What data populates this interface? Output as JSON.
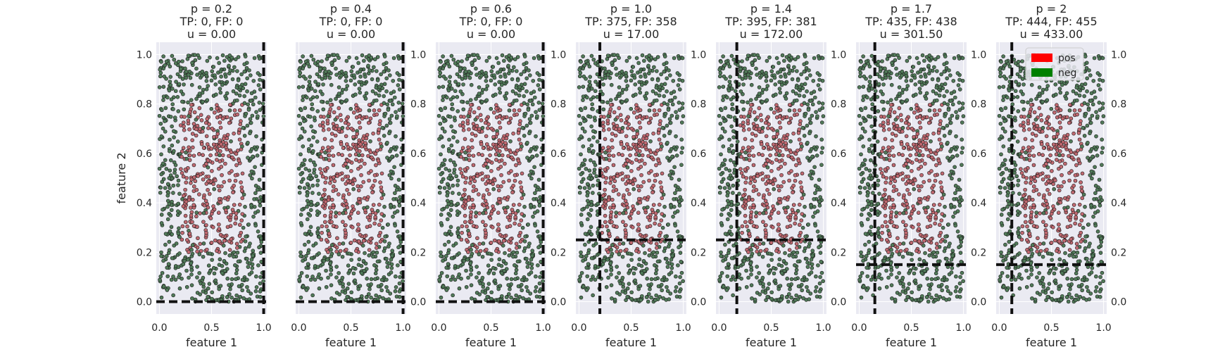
{
  "chart_data": [
    {
      "type": "scatter",
      "title_lines": [
        "p = 0.2",
        "TP: 0, FP: 0",
        "u = 0.00"
      ],
      "xlabel": "feature 1",
      "ylabel": "feature 2",
      "xlim": [
        -0.03,
        1.03
      ],
      "ylim": [
        -0.05,
        1.05
      ],
      "xticks": [
        "0.0",
        "0.5",
        "1.0"
      ],
      "yticks": [
        "0.0",
        "0.2",
        "0.4",
        "0.6",
        "0.8",
        "1.0"
      ],
      "yaxis_side": "left",
      "threshold_x": 1.0,
      "threshold_y": 0.0,
      "grid": true
    },
    {
      "type": "scatter",
      "title_lines": [
        "p = 0.4",
        "TP: 0, FP: 0",
        "u = 0.00"
      ],
      "xlabel": "feature 1",
      "ylabel": "",
      "xlim": [
        -0.03,
        1.03
      ],
      "ylim": [
        -0.05,
        1.05
      ],
      "xticks": [
        "0.0",
        "0.5",
        "1.0"
      ],
      "yticks": [
        "0.0",
        "0.2",
        "0.4",
        "0.6",
        "0.8",
        "1.0"
      ],
      "yaxis_side": "right",
      "threshold_x": 1.0,
      "threshold_y": 0.0,
      "grid": true
    },
    {
      "type": "scatter",
      "title_lines": [
        "p = 0.6",
        "TP: 0, FP: 0",
        "u = 0.00"
      ],
      "xlabel": "feature 1",
      "ylabel": "",
      "xlim": [
        -0.03,
        1.03
      ],
      "ylim": [
        -0.05,
        1.05
      ],
      "xticks": [
        "0.0",
        "0.5",
        "1.0"
      ],
      "yticks": [
        "0.0",
        "0.2",
        "0.4",
        "0.6",
        "0.8",
        "1.0"
      ],
      "yaxis_side": "right",
      "threshold_x": 1.0,
      "threshold_y": 0.0,
      "grid": true
    },
    {
      "type": "scatter",
      "title_lines": [
        "p = 1.0",
        "TP: 375, FP: 358",
        "u = 17.00"
      ],
      "xlabel": "feature 1",
      "ylabel": "",
      "xlim": [
        -0.03,
        1.03
      ],
      "ylim": [
        -0.05,
        1.05
      ],
      "xticks": [
        "0.0",
        "0.5",
        "1.0"
      ],
      "yticks": [
        "0.0",
        "0.2",
        "0.4",
        "0.6",
        "0.8",
        "1.0"
      ],
      "yaxis_side": "right",
      "threshold_x": 0.2,
      "threshold_y": 0.25,
      "grid": true
    },
    {
      "type": "scatter",
      "title_lines": [
        "p = 1.4",
        "TP: 395, FP: 381",
        "u = 172.00"
      ],
      "xlabel": "feature 1",
      "ylabel": "",
      "xlim": [
        -0.03,
        1.03
      ],
      "ylim": [
        -0.05,
        1.05
      ],
      "xticks": [
        "0.0",
        "0.5",
        "1.0"
      ],
      "yticks": [
        "0.0",
        "0.2",
        "0.4",
        "0.6",
        "0.8",
        "1.0"
      ],
      "yaxis_side": "right",
      "threshold_x": 0.17,
      "threshold_y": 0.25,
      "grid": true
    },
    {
      "type": "scatter",
      "title_lines": [
        "p = 1.7",
        "TP: 435, FP: 438",
        "u = 301.50"
      ],
      "xlabel": "feature 1",
      "ylabel": "",
      "xlim": [
        -0.03,
        1.03
      ],
      "ylim": [
        -0.05,
        1.05
      ],
      "xticks": [
        "0.0",
        "0.5",
        "1.0"
      ],
      "yticks": [
        "0.0",
        "0.2",
        "0.4",
        "0.6",
        "0.8",
        "1.0"
      ],
      "yaxis_side": "right",
      "threshold_x": 0.15,
      "threshold_y": 0.15,
      "grid": true
    },
    {
      "type": "scatter",
      "title_lines": [
        "p = 2",
        "TP: 444, FP: 455",
        "u = 433.00"
      ],
      "xlabel": "feature 1",
      "ylabel": "",
      "xlim": [
        -0.03,
        1.03
      ],
      "ylim": [
        -0.05,
        1.05
      ],
      "xticks": [
        "0.0",
        "0.5",
        "1.0"
      ],
      "yticks": [
        "0.0",
        "0.2",
        "0.4",
        "0.6",
        "0.8",
        "1.0"
      ],
      "yaxis_side": "right",
      "threshold_x": 0.12,
      "threshold_y": 0.15,
      "grid": true,
      "legend": {
        "placement": "upper-right",
        "entries": [
          {
            "label": "pos",
            "color": "#ff0000"
          },
          {
            "label": "neg",
            "color": "#008000"
          }
        ]
      }
    }
  ],
  "points": {
    "count": 1000,
    "seed": 12345,
    "positive_region": {
      "x_range": [
        0.2,
        0.8
      ],
      "y_range": [
        0.2,
        0.8
      ]
    },
    "colors": {
      "pos": "#c06870",
      "neg": "#507a58",
      "edge": "#1e1e1e"
    }
  },
  "style": {
    "axes_bg": "#eaeaf2",
    "grid_color": "#ffffff",
    "threshold_color": "#111111"
  }
}
